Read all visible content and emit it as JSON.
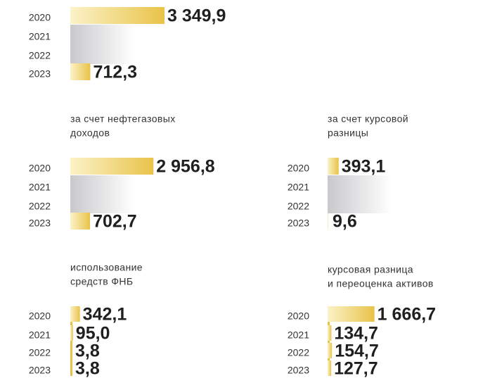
{
  "chart_data": [
    {
      "type": "bar",
      "categories": [
        "2020",
        "2021",
        "2022",
        "2023"
      ],
      "values": [
        3349.9,
        null,
        null,
        712.3
      ],
      "value_labels": [
        "3 349,9",
        null,
        null,
        "712,3"
      ],
      "color": "#e9c349"
    },
    {
      "type": "bar",
      "title": [
        "за счет нефтегазовых",
        "доходов"
      ],
      "categories": [
        "2020",
        "2021",
        "2022",
        "2023"
      ],
      "values": [
        2956.8,
        null,
        null,
        702.7
      ],
      "value_labels": [
        "2 956,8",
        null,
        null,
        "702,7"
      ],
      "color": "#e9c349"
    },
    {
      "type": "bar",
      "title": [
        "за счет курсовой",
        "разницы"
      ],
      "categories": [
        "2020",
        "2021",
        "2022",
        "2023"
      ],
      "values": [
        393.1,
        null,
        null,
        9.6
      ],
      "value_labels": [
        "393,1",
        null,
        null,
        "9,6"
      ],
      "color": "#e9c349"
    },
    {
      "type": "bar",
      "title": [
        "использование",
        "средств ФНБ"
      ],
      "categories": [
        "2020",
        "2021",
        "2022",
        "2023"
      ],
      "values": [
        342.1,
        95.0,
        3.8,
        3.8
      ],
      "value_labels": [
        "342,1",
        "95,0",
        "3,8",
        "3,8"
      ],
      "color": "#e9c349"
    },
    {
      "type": "bar",
      "title": [
        "курсовая разница",
        "и переоценка активов"
      ],
      "categories": [
        "2020",
        "2021",
        "2022",
        "2023"
      ],
      "values": [
        1666.7,
        134.7,
        154.7,
        127.7
      ],
      "value_labels": [
        "1 666,7",
        "134,7",
        "154,7",
        "127,7"
      ],
      "color": "#e9c349"
    }
  ]
}
